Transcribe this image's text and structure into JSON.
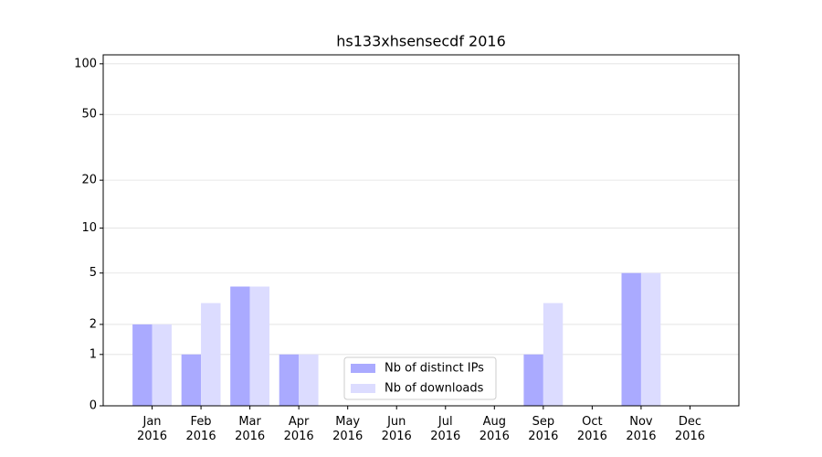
{
  "chart_data": {
    "type": "bar",
    "title": "hs133xhsensecdf 2016",
    "categories": [
      "Jan 2016",
      "Feb 2016",
      "Mar 2016",
      "Apr 2016",
      "May 2016",
      "Jun 2016",
      "Jul 2016",
      "Aug 2016",
      "Sep 2016",
      "Oct 2016",
      "Nov 2016",
      "Dec 2016"
    ],
    "series": [
      {
        "name": "Nb of distinct IPs",
        "color": "#aaaaff",
        "values": [
          2,
          1,
          4,
          1,
          0,
          0,
          0,
          0,
          1,
          0,
          5,
          0
        ]
      },
      {
        "name": "Nb of downloads",
        "color": "#dcdcff",
        "values": [
          2,
          3,
          4,
          1,
          0,
          0,
          0,
          0,
          3,
          0,
          5,
          0
        ]
      }
    ],
    "yscale": "log1p",
    "ylim": [
      0,
      113
    ],
    "yticks": [
      0,
      1,
      2,
      5,
      10,
      20,
      50,
      100
    ],
    "grid": true,
    "legend": "lower center"
  }
}
